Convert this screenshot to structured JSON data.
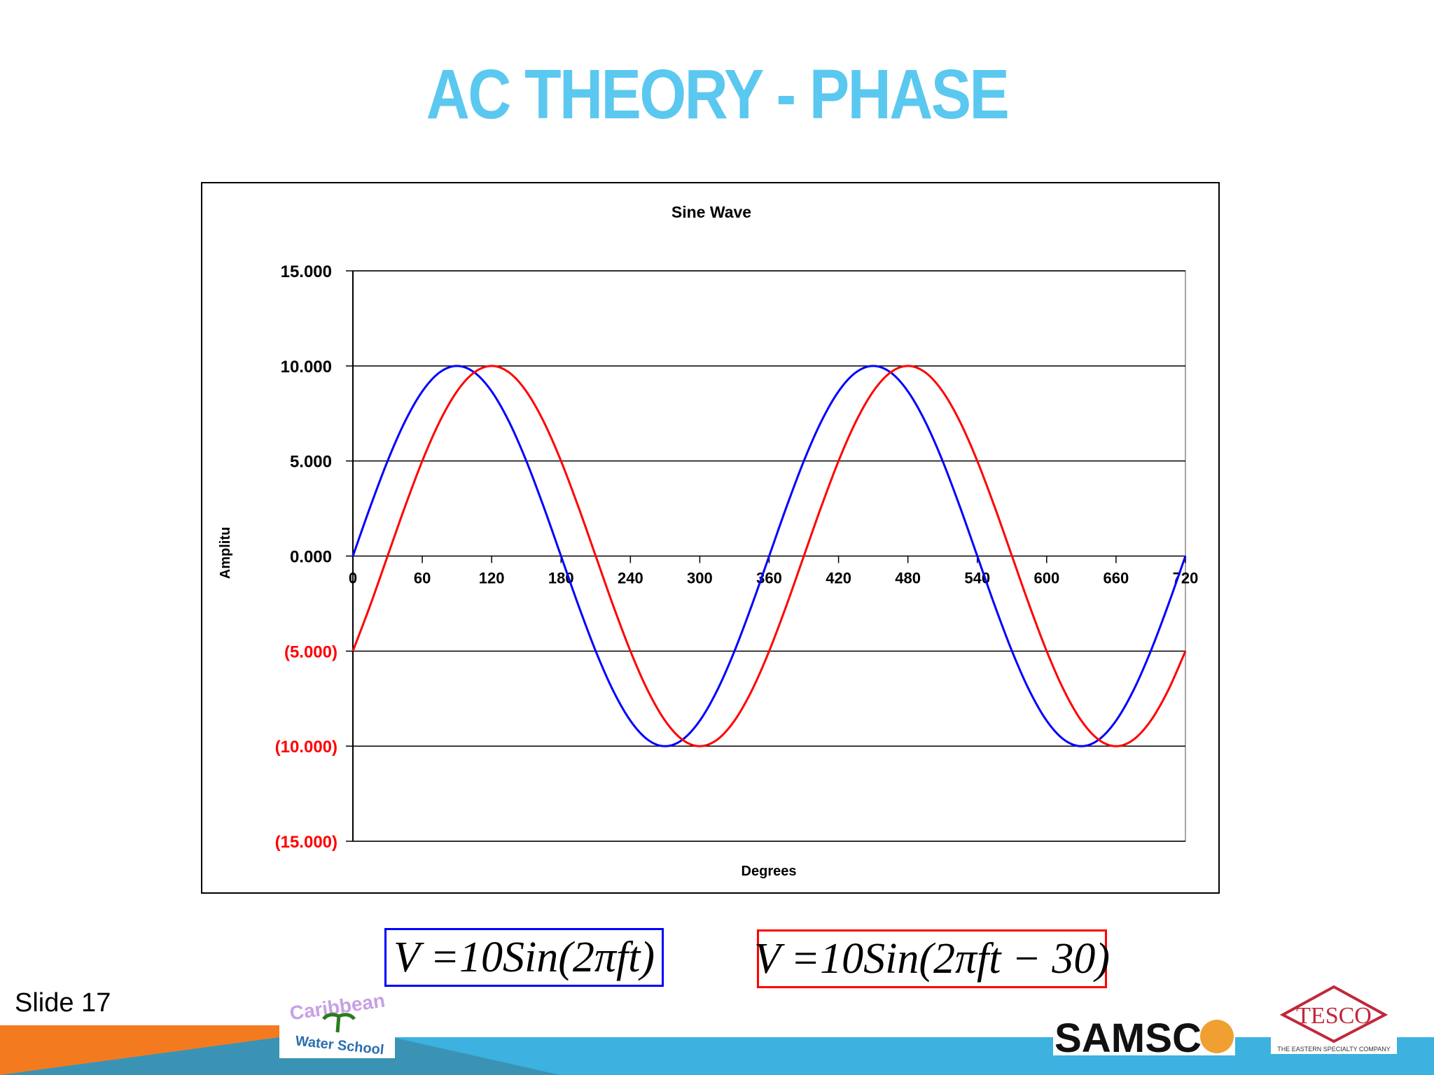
{
  "slide": {
    "title": "AC THEORY - PHASE",
    "slide_number": "Slide 17"
  },
  "equations": [
    {
      "text": "V =10Sin(2πft)",
      "color": "#0000FF"
    },
    {
      "text": "V =10Sin(2πft − 30)",
      "color": "#FF0000"
    }
  ],
  "logos": {
    "caribbean": "Caribbean Water School",
    "samsco": "SAMSCO",
    "tesco": "TESCO",
    "tesco_sub": "THE EASTERN SPECIALTY COMPANY"
  },
  "colors": {
    "title": "#5BC8F0",
    "orange": "#F47A20",
    "blue_band": "#3DB1E0"
  },
  "chart_data": {
    "type": "line",
    "title": "Sine Wave",
    "xlabel": "Degrees",
    "ylabel": "Amplitu",
    "xlim": [
      0,
      720
    ],
    "ylim": [
      -15,
      15
    ],
    "x_ticks": [
      "0",
      "60",
      "120",
      "180",
      "240",
      "300",
      "360",
      "420",
      "480",
      "540",
      "600",
      "660",
      "720"
    ],
    "y_ticks": [
      {
        "value": 15,
        "label": "15.000",
        "color": "#000000"
      },
      {
        "value": 10,
        "label": "10.000",
        "color": "#000000"
      },
      {
        "value": 5,
        "label": "5.000",
        "color": "#000000"
      },
      {
        "value": 0,
        "label": "0.000",
        "color": "#000000"
      },
      {
        "value": -5,
        "label": "(5.000)",
        "color": "#FF0000"
      },
      {
        "value": -10,
        "label": "(10.000)",
        "color": "#FF0000"
      },
      {
        "value": -15,
        "label": "(15.000)",
        "color": "#FF0000"
      }
    ],
    "grid": true,
    "x": [
      0,
      15,
      30,
      45,
      60,
      75,
      90,
      105,
      120,
      135,
      150,
      165,
      180,
      195,
      210,
      225,
      240,
      255,
      270,
      285,
      300,
      315,
      330,
      345,
      360,
      375,
      390,
      405,
      420,
      435,
      450,
      465,
      480,
      495,
      510,
      525,
      540,
      555,
      570,
      585,
      600,
      615,
      630,
      645,
      660,
      675,
      690,
      705,
      720
    ],
    "series": [
      {
        "name": "V = 10Sin(2πft)",
        "color": "#0000FF",
        "values": [
          0,
          2.588,
          5,
          7.071,
          8.66,
          9.659,
          10,
          9.659,
          8.66,
          7.071,
          5,
          2.588,
          0,
          -2.588,
          -5,
          -7.071,
          -8.66,
          -9.659,
          -10,
          -9.659,
          -8.66,
          -7.071,
          -5,
          -2.588,
          0,
          2.588,
          5,
          7.071,
          8.66,
          9.659,
          10,
          9.659,
          8.66,
          7.071,
          5,
          2.588,
          0,
          -2.588,
          -5,
          -7.071,
          -8.66,
          -9.659,
          -10,
          -9.659,
          -8.66,
          -7.071,
          -5,
          -2.588,
          0
        ]
      },
      {
        "name": "V = 10Sin(2πft - 30)",
        "color": "#FF0000",
        "values": [
          -5,
          -2.588,
          0,
          2.588,
          5,
          7.071,
          8.66,
          9.659,
          10,
          9.659,
          8.66,
          7.071,
          5,
          2.588,
          0,
          -2.588,
          -5,
          -7.071,
          -8.66,
          -9.659,
          -10,
          -9.659,
          -8.66,
          -7.071,
          -5,
          -2.588,
          0,
          2.588,
          5,
          7.071,
          8.66,
          9.659,
          10,
          9.659,
          8.66,
          7.071,
          5,
          2.588,
          0,
          -2.588,
          -5,
          -7.071,
          -8.66,
          -9.659,
          -10,
          -9.659,
          -8.66,
          -7.071,
          -5
        ]
      }
    ]
  }
}
